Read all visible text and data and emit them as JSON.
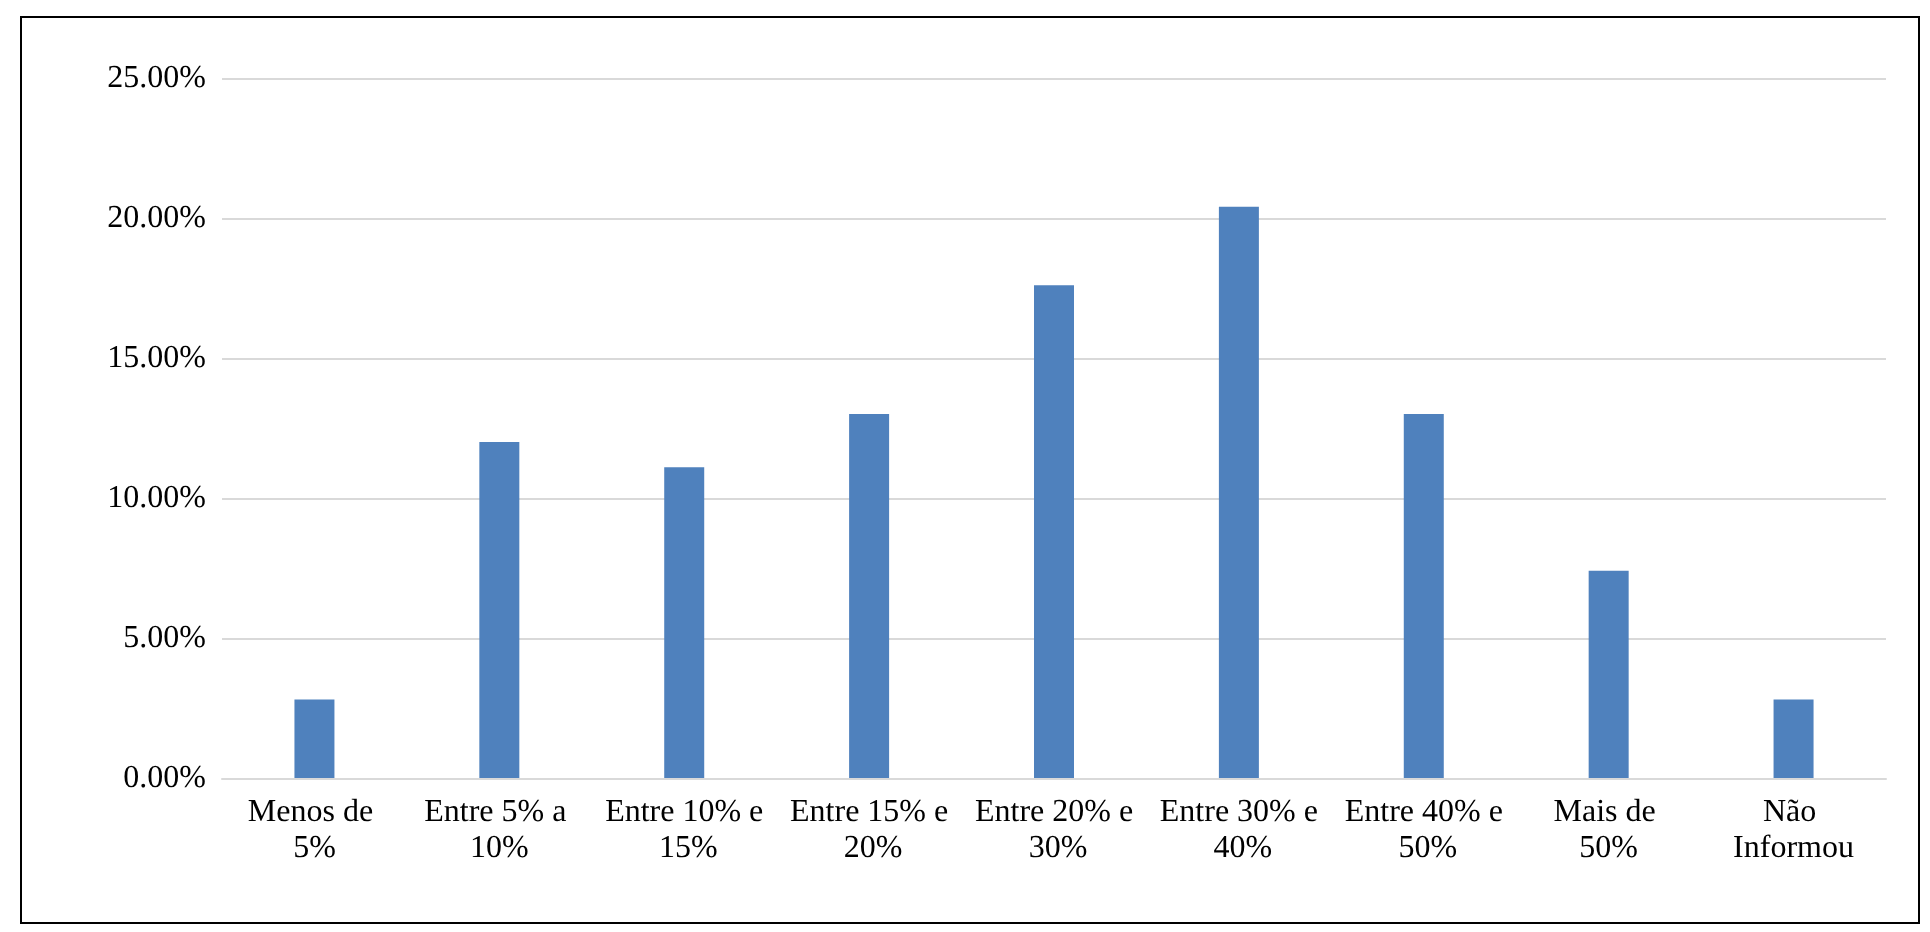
{
  "chart_data": {
    "type": "bar",
    "categories": [
      "Menos de 5%",
      "Entre 5% a 10%",
      "Entre 10% e 15%",
      "Entre 15% e 20%",
      "Entre 20% e 30%",
      "Entre 30% e 40%",
      "Entre 40% e 50%",
      "Mais de 50%",
      "Não Informou"
    ],
    "values": [
      2.8,
      12.0,
      11.1,
      13.0,
      17.6,
      20.4,
      13.0,
      7.4,
      2.8
    ],
    "color": "#4f81bd",
    "ylim": [
      0,
      25
    ],
    "yticks": [
      {
        "value": 0,
        "label": "0.00%"
      },
      {
        "value": 5,
        "label": "5.00%"
      },
      {
        "value": 10,
        "label": "10.00%"
      },
      {
        "value": 15,
        "label": "15.00%"
      },
      {
        "value": 20,
        "label": "20.00%"
      },
      {
        "value": 25,
        "label": "25.00%"
      }
    ],
    "grid": "y"
  }
}
